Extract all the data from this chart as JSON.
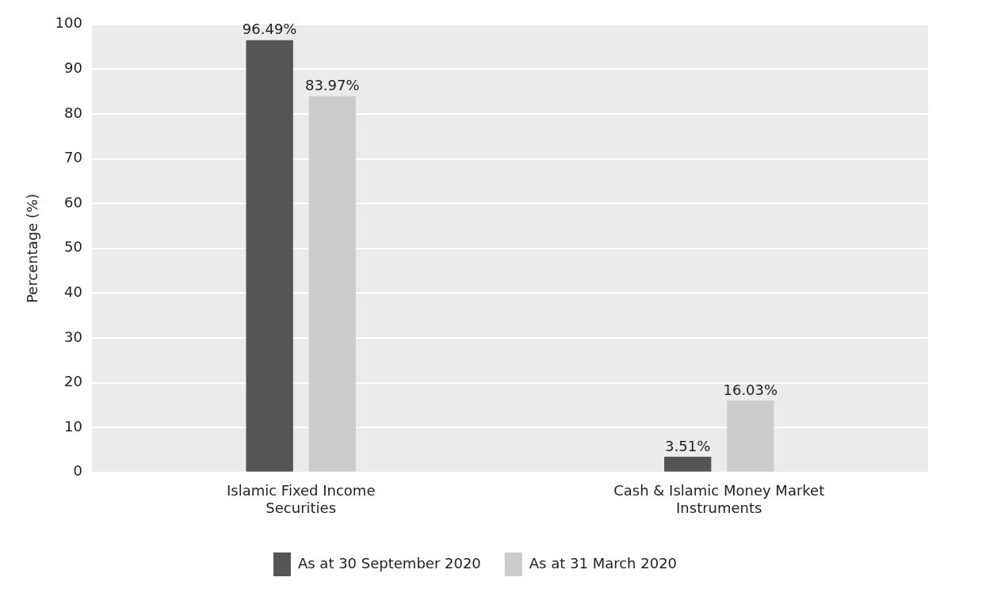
{
  "chart_data": {
    "type": "bar",
    "categories": [
      "Islamic Fixed Income Securities",
      "Cash & Islamic Money Market Instruments"
    ],
    "series": [
      {
        "name": "As at 30 September 2020",
        "color": "#555555",
        "values": [
          96.49,
          3.51
        ],
        "value_labels": [
          "96.49%",
          "3.51%"
        ]
      },
      {
        "name": "As at 31 March 2020",
        "color": "#cccccc",
        "values": [
          83.97,
          16.03
        ],
        "value_labels": [
          "83.97%",
          "16.03%"
        ]
      }
    ],
    "ylabel": "Percentage (%)",
    "ylim": [
      0,
      100
    ],
    "yticks": [
      0,
      10,
      20,
      30,
      40,
      50,
      60,
      70,
      80,
      90,
      100
    ],
    "grid": "y",
    "legend": "bottom"
  }
}
